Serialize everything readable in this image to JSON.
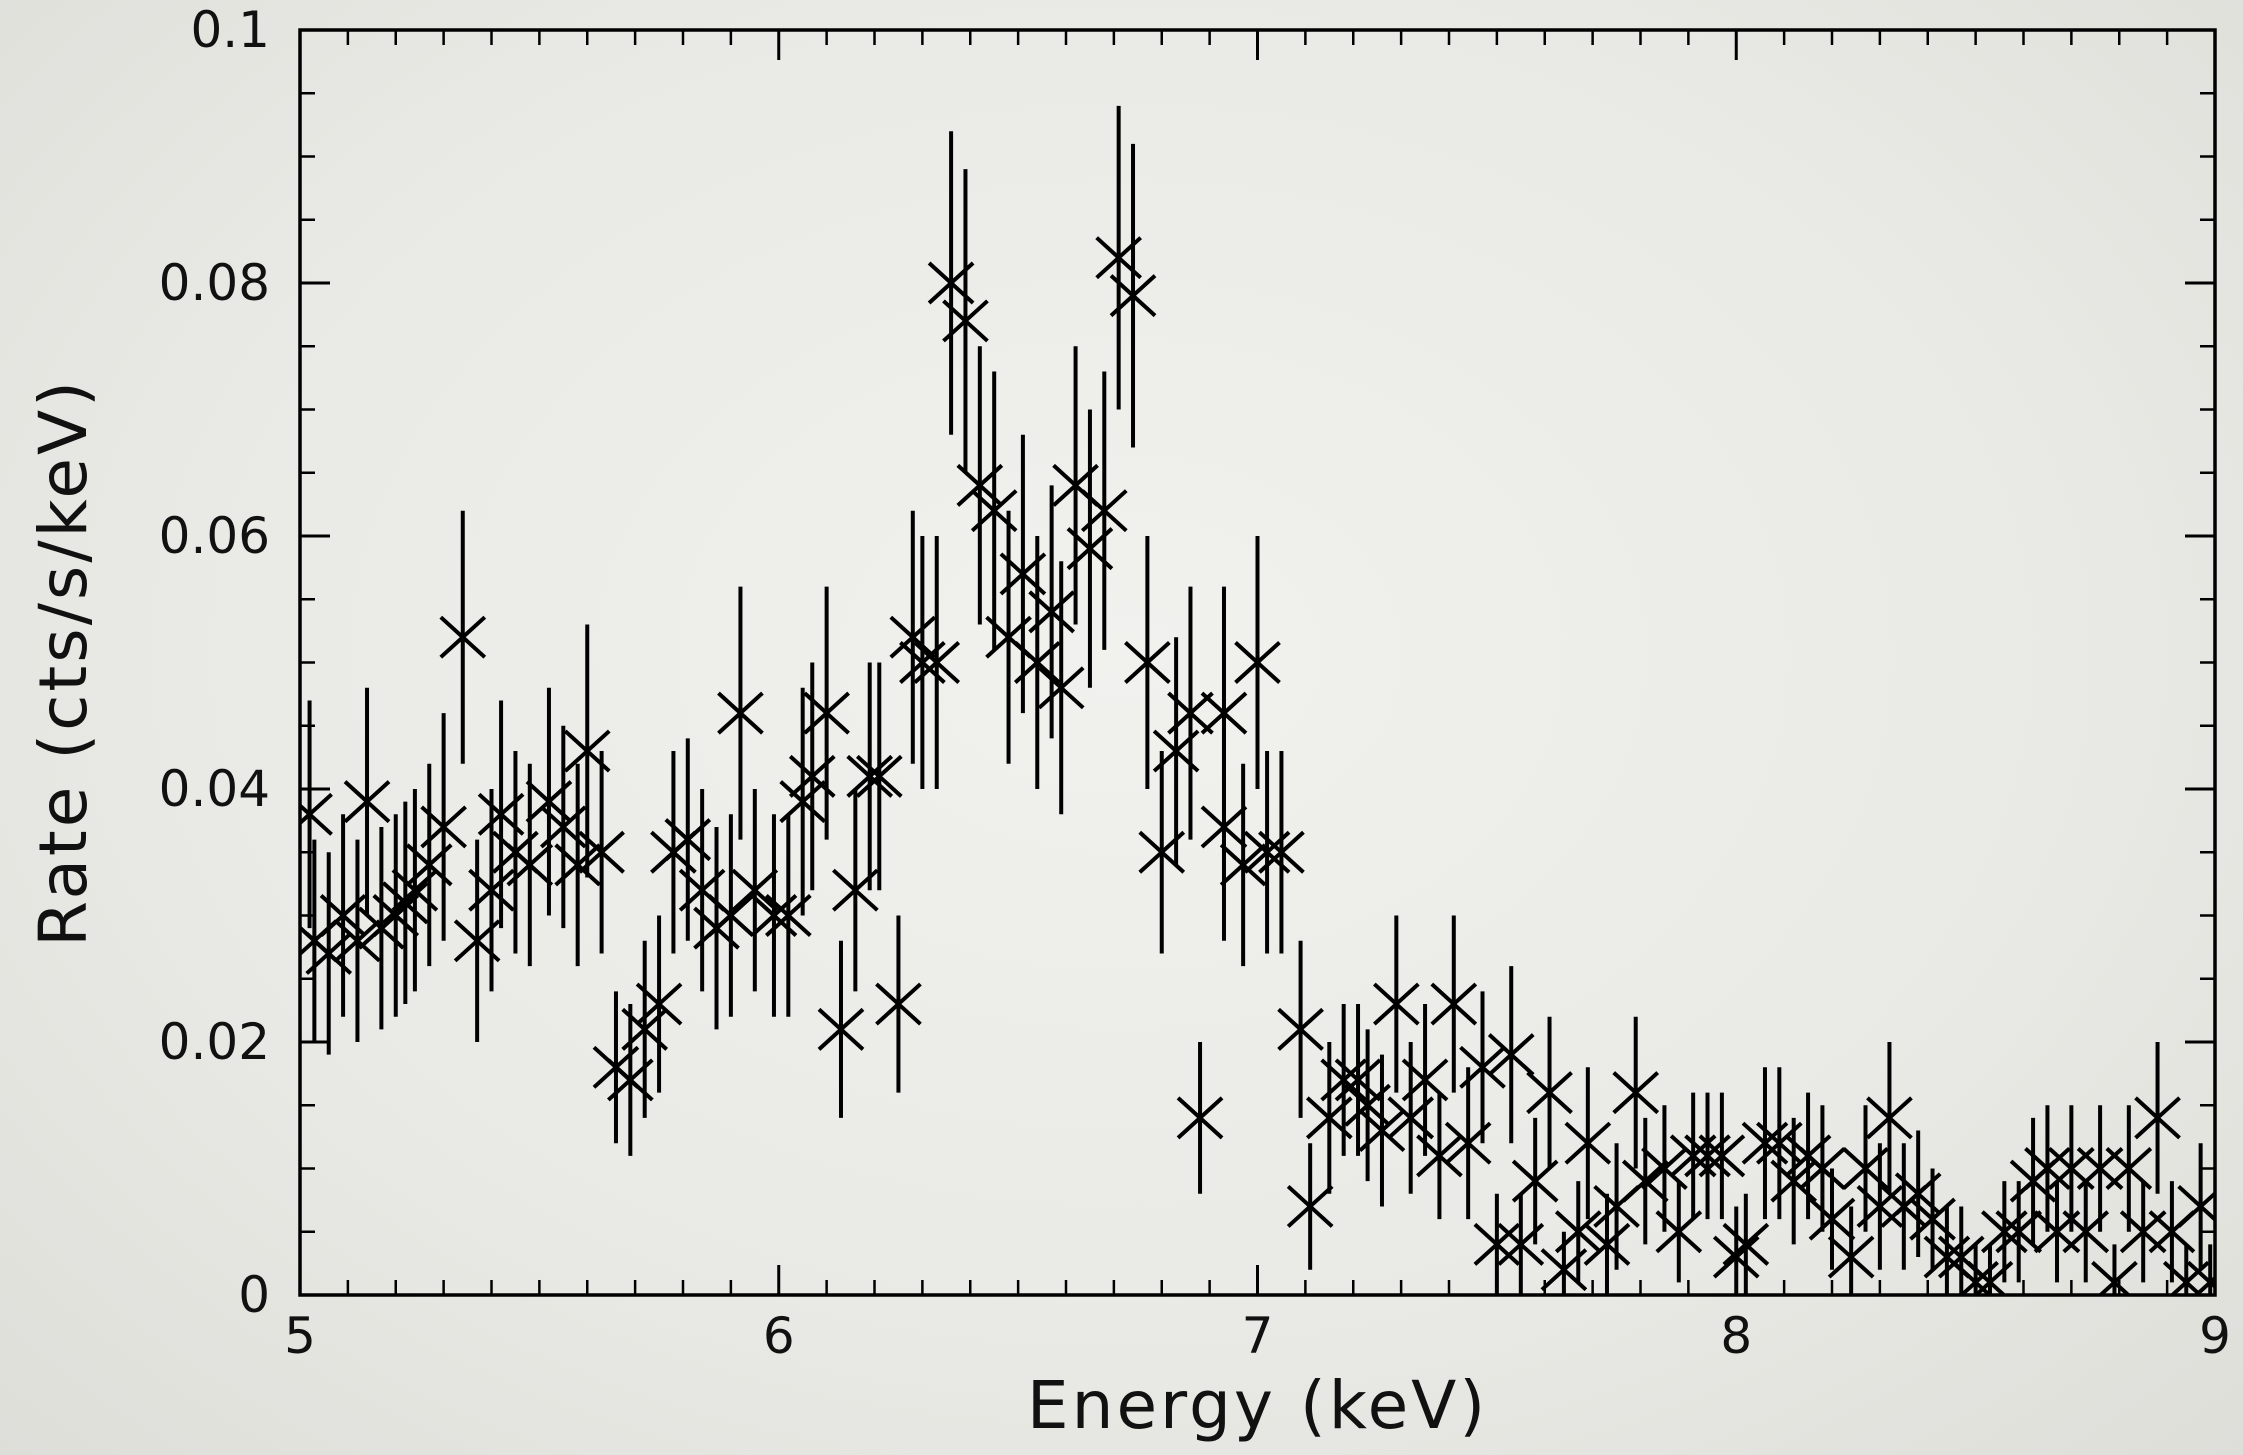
{
  "chart_data": {
    "type": "scatter",
    "title": "",
    "xlabel": "Energy  (keV)",
    "ylabel": "Rate  (cts/s/keV)",
    "xlim": [
      5,
      9
    ],
    "ylim": [
      0,
      0.1
    ],
    "x_ticks": [
      5,
      6,
      7,
      8,
      9
    ],
    "x_tick_labels": [
      "5",
      "6",
      "7",
      "8",
      "9"
    ],
    "y_ticks": [
      0,
      0.02,
      0.04,
      0.06,
      0.08,
      0.1
    ],
    "y_tick_labels": [
      "0",
      "0.02",
      "0.04",
      "0.06",
      "0.08",
      "0.1"
    ],
    "grid": false,
    "marker": "x",
    "error_bars": "vertical",
    "series": [
      {
        "points": [
          [
            5.02,
            0.038,
            0.009
          ],
          [
            5.03,
            0.028,
            0.008
          ],
          [
            5.06,
            0.027,
            0.008
          ],
          [
            5.09,
            0.03,
            0.008
          ],
          [
            5.12,
            0.028,
            0.008
          ],
          [
            5.14,
            0.039,
            0.009
          ],
          [
            5.17,
            0.029,
            0.008
          ],
          [
            5.2,
            0.03,
            0.008
          ],
          [
            5.22,
            0.031,
            0.008
          ],
          [
            5.24,
            0.032,
            0.008
          ],
          [
            5.27,
            0.034,
            0.008
          ],
          [
            5.3,
            0.037,
            0.009
          ],
          [
            5.34,
            0.052,
            0.01
          ],
          [
            5.37,
            0.028,
            0.008
          ],
          [
            5.4,
            0.032,
            0.008
          ],
          [
            5.42,
            0.038,
            0.009
          ],
          [
            5.45,
            0.035,
            0.008
          ],
          [
            5.48,
            0.034,
            0.008
          ],
          [
            5.52,
            0.039,
            0.009
          ],
          [
            5.55,
            0.037,
            0.008
          ],
          [
            5.58,
            0.034,
            0.008
          ],
          [
            5.6,
            0.043,
            0.01
          ],
          [
            5.63,
            0.035,
            0.008
          ],
          [
            5.66,
            0.018,
            0.006
          ],
          [
            5.69,
            0.017,
            0.006
          ],
          [
            5.72,
            0.021,
            0.007
          ],
          [
            5.75,
            0.023,
            0.007
          ],
          [
            5.78,
            0.035,
            0.008
          ],
          [
            5.81,
            0.036,
            0.008
          ],
          [
            5.84,
            0.032,
            0.008
          ],
          [
            5.87,
            0.029,
            0.008
          ],
          [
            5.9,
            0.03,
            0.008
          ],
          [
            5.92,
            0.046,
            0.01
          ],
          [
            5.95,
            0.032,
            0.008
          ],
          [
            5.99,
            0.03,
            0.008
          ],
          [
            6.02,
            0.03,
            0.008
          ],
          [
            6.05,
            0.039,
            0.009
          ],
          [
            6.07,
            0.041,
            0.009
          ],
          [
            6.1,
            0.046,
            0.01
          ],
          [
            6.13,
            0.021,
            0.007
          ],
          [
            6.16,
            0.032,
            0.008
          ],
          [
            6.19,
            0.041,
            0.009
          ],
          [
            6.21,
            0.041,
            0.009
          ],
          [
            6.25,
            0.023,
            0.007
          ],
          [
            6.28,
            0.052,
            0.01
          ],
          [
            6.3,
            0.05,
            0.01
          ],
          [
            6.33,
            0.05,
            0.01
          ],
          [
            6.36,
            0.08,
            0.012
          ],
          [
            6.39,
            0.077,
            0.012
          ],
          [
            6.42,
            0.064,
            0.011
          ],
          [
            6.45,
            0.062,
            0.011
          ],
          [
            6.48,
            0.052,
            0.01
          ],
          [
            6.51,
            0.057,
            0.011
          ],
          [
            6.54,
            0.05,
            0.01
          ],
          [
            6.57,
            0.054,
            0.01
          ],
          [
            6.59,
            0.048,
            0.01
          ],
          [
            6.62,
            0.064,
            0.011
          ],
          [
            6.65,
            0.059,
            0.011
          ],
          [
            6.68,
            0.062,
            0.011
          ],
          [
            6.71,
            0.082,
            0.012
          ],
          [
            6.74,
            0.079,
            0.012
          ],
          [
            6.77,
            0.05,
            0.01
          ],
          [
            6.8,
            0.035,
            0.008
          ],
          [
            6.83,
            0.043,
            0.009
          ],
          [
            6.86,
            0.046,
            0.01
          ],
          [
            6.88,
            0.014,
            0.006
          ],
          [
            6.93,
            0.046,
            0.01
          ],
          [
            6.93,
            0.037,
            0.009
          ],
          [
            6.97,
            0.034,
            0.008
          ],
          [
            7.0,
            0.05,
            0.01
          ],
          [
            7.02,
            0.035,
            0.008
          ],
          [
            7.05,
            0.035,
            0.008
          ],
          [
            7.09,
            0.021,
            0.007
          ],
          [
            7.11,
            0.007,
            0.005
          ],
          [
            7.15,
            0.014,
            0.006
          ],
          [
            7.18,
            0.017,
            0.006
          ],
          [
            7.21,
            0.017,
            0.006
          ],
          [
            7.23,
            0.015,
            0.006
          ],
          [
            7.26,
            0.013,
            0.006
          ],
          [
            7.29,
            0.023,
            0.007
          ],
          [
            7.32,
            0.014,
            0.006
          ],
          [
            7.35,
            0.017,
            0.006
          ],
          [
            7.38,
            0.011,
            0.005
          ],
          [
            7.41,
            0.023,
            0.007
          ],
          [
            7.44,
            0.012,
            0.006
          ],
          [
            7.47,
            0.018,
            0.006
          ],
          [
            7.5,
            0.004,
            0.004
          ],
          [
            7.53,
            0.019,
            0.007
          ],
          [
            7.55,
            0.004,
            0.004
          ],
          [
            7.58,
            0.009,
            0.005
          ],
          [
            7.61,
            0.016,
            0.006
          ],
          [
            7.64,
            0.002,
            0.003
          ],
          [
            7.67,
            0.005,
            0.004
          ],
          [
            7.69,
            0.012,
            0.006
          ],
          [
            7.73,
            0.004,
            0.004
          ],
          [
            7.75,
            0.007,
            0.005
          ],
          [
            7.79,
            0.016,
            0.006
          ],
          [
            7.81,
            0.009,
            0.005
          ],
          [
            7.85,
            0.01,
            0.005
          ],
          [
            7.88,
            0.005,
            0.004
          ],
          [
            7.91,
            0.011,
            0.005
          ],
          [
            7.94,
            0.011,
            0.005
          ],
          [
            7.97,
            0.011,
            0.005
          ],
          [
            8.0,
            0.003,
            0.004
          ],
          [
            8.02,
            0.004,
            0.004
          ],
          [
            8.06,
            0.012,
            0.006
          ],
          [
            8.09,
            0.012,
            0.006
          ],
          [
            8.12,
            0.009,
            0.005
          ],
          [
            8.15,
            0.011,
            0.005
          ],
          [
            8.18,
            0.01,
            0.005
          ],
          [
            8.2,
            0.006,
            0.004
          ],
          [
            8.24,
            0.003,
            0.004
          ],
          [
            8.27,
            0.01,
            0.005
          ],
          [
            8.3,
            0.007,
            0.005
          ],
          [
            8.32,
            0.014,
            0.006
          ],
          [
            8.35,
            0.007,
            0.005
          ],
          [
            8.38,
            0.008,
            0.005
          ],
          [
            8.41,
            0.006,
            0.004
          ],
          [
            8.44,
            0.003,
            0.004
          ],
          [
            8.47,
            0.003,
            0.004
          ],
          [
            8.5,
            0.001,
            0.003
          ],
          [
            8.53,
            0.001,
            0.003
          ],
          [
            8.56,
            0.005,
            0.004
          ],
          [
            8.59,
            0.005,
            0.004
          ],
          [
            8.62,
            0.009,
            0.005
          ],
          [
            8.65,
            0.01,
            0.005
          ],
          [
            8.67,
            0.005,
            0.004
          ],
          [
            8.7,
            0.01,
            0.005
          ],
          [
            8.73,
            0.005,
            0.004
          ],
          [
            8.76,
            0.01,
            0.005
          ],
          [
            8.79,
            0.001,
            0.003
          ],
          [
            8.82,
            0.01,
            0.005
          ],
          [
            8.85,
            0.005,
            0.004
          ],
          [
            8.88,
            0.014,
            0.006
          ],
          [
            8.91,
            0.005,
            0.004
          ],
          [
            8.94,
            0.001,
            0.003
          ],
          [
            8.97,
            0.007,
            0.005
          ],
          [
            8.99,
            0.001,
            0.003
          ]
        ]
      }
    ]
  }
}
